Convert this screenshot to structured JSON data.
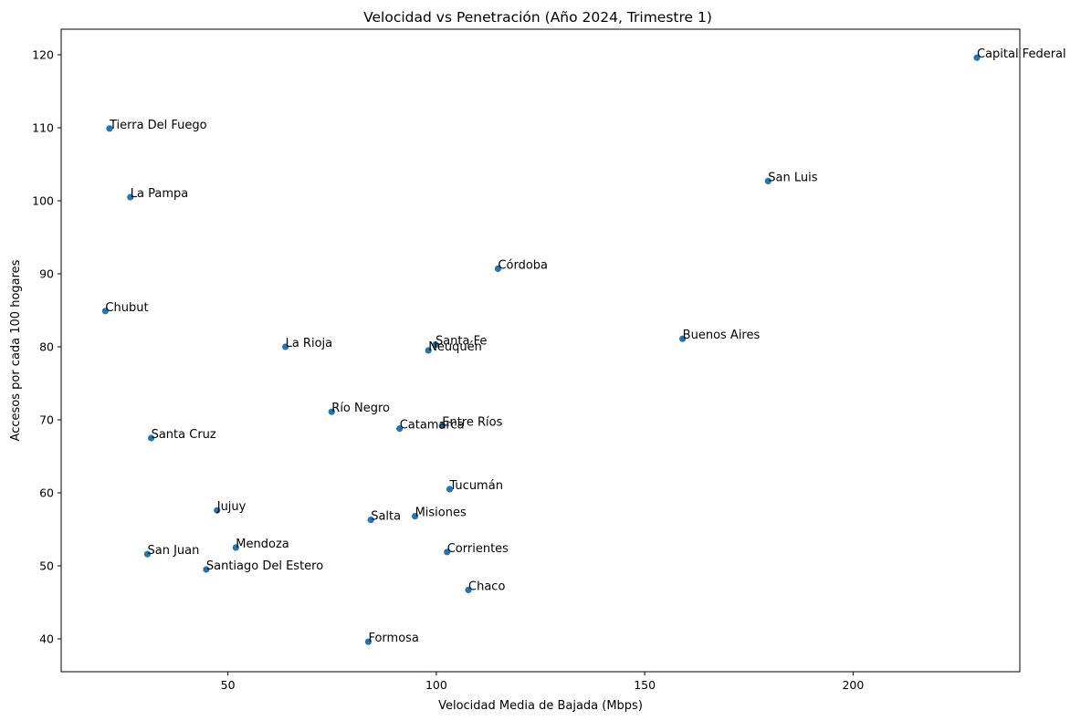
{
  "chart_data": {
    "type": "scatter",
    "title": "Velocidad vs Penetración (Año 2024, Trimestre 1)",
    "xlabel": "Velocidad Media de Bajada (Mbps)",
    "ylabel": "Accesos por cada 100 hogares",
    "xlim": [
      10,
      240
    ],
    "ylim": [
      35.5,
      123.5
    ],
    "xticks": [
      50,
      100,
      150,
      200
    ],
    "yticks": [
      40,
      50,
      60,
      70,
      80,
      90,
      100,
      110,
      120
    ],
    "grid": false,
    "legend": "none",
    "color": "#1f77b4",
    "points": [
      {
        "label": "Capital Federal",
        "x": 229.7,
        "y": 119.6
      },
      {
        "label": "Tierra Del Fuego",
        "x": 21.6,
        "y": 109.9
      },
      {
        "label": "San Luis",
        "x": 179.6,
        "y": 102.7
      },
      {
        "label": "La Pampa",
        "x": 26.6,
        "y": 100.5
      },
      {
        "label": "Córdoba",
        "x": 114.8,
        "y": 90.7
      },
      {
        "label": "Chubut",
        "x": 20.6,
        "y": 84.9
      },
      {
        "label": "Buenos Aires",
        "x": 159.1,
        "y": 81.1
      },
      {
        "label": "Santa Fe",
        "x": 99.8,
        "y": 80.3
      },
      {
        "label": "La Rioja",
        "x": 63.8,
        "y": 80.0
      },
      {
        "label": "Neuquén",
        "x": 98.1,
        "y": 79.5
      },
      {
        "label": "Río Negro",
        "x": 74.9,
        "y": 71.1
      },
      {
        "label": "Entre Ríos",
        "x": 101.4,
        "y": 69.2
      },
      {
        "label": "Catamarca",
        "x": 91.2,
        "y": 68.8
      },
      {
        "label": "Santa Cruz",
        "x": 31.6,
        "y": 67.5
      },
      {
        "label": "Tucumán",
        "x": 103.2,
        "y": 60.5
      },
      {
        "label": "Jujuy",
        "x": 47.4,
        "y": 57.6
      },
      {
        "label": "Misiones",
        "x": 94.9,
        "y": 56.8
      },
      {
        "label": "Salta",
        "x": 84.3,
        "y": 56.3
      },
      {
        "label": "Mendoza",
        "x": 51.9,
        "y": 52.5
      },
      {
        "label": "Corrientes",
        "x": 102.6,
        "y": 51.9
      },
      {
        "label": "San Juan",
        "x": 30.7,
        "y": 51.6
      },
      {
        "label": "Santiago Del Estero",
        "x": 44.8,
        "y": 49.5
      },
      {
        "label": "Chaco",
        "x": 107.7,
        "y": 46.7
      },
      {
        "label": "Formosa",
        "x": 83.7,
        "y": 39.6
      }
    ]
  }
}
